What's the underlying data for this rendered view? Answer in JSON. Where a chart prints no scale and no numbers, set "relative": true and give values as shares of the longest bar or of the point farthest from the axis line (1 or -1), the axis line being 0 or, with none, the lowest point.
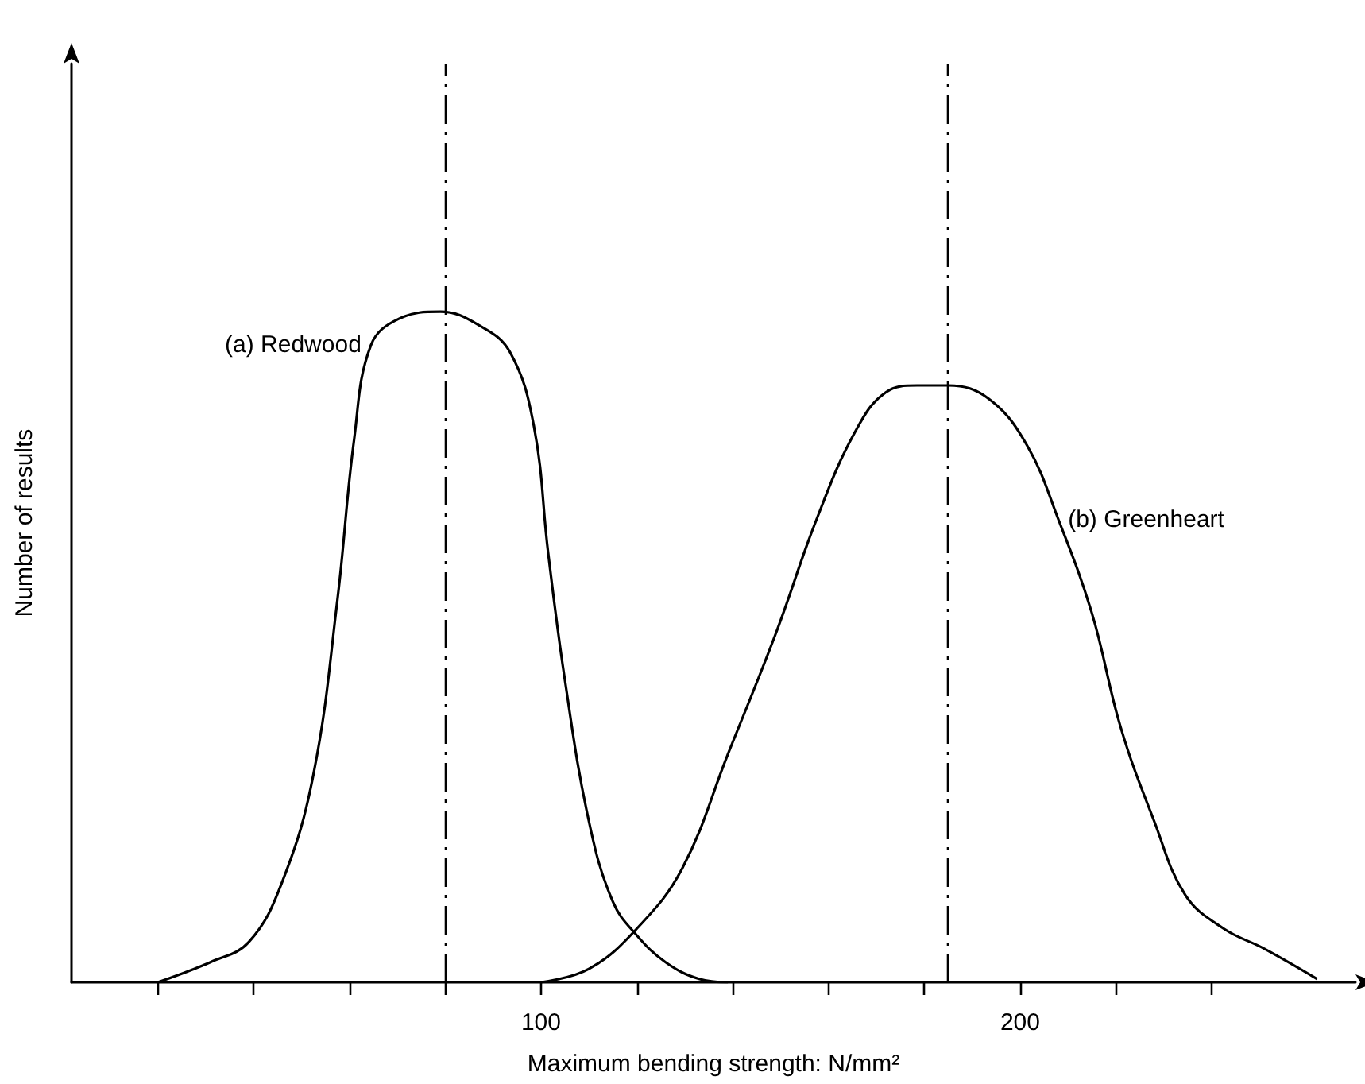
{
  "chart_data": {
    "type": "line",
    "relative": true,
    "xlabel": "Maximum bending strength: N/mm²",
    "ylabel": "Number of results",
    "xlim": [
      2,
      270
    ],
    "xticks": [
      {
        "value": 20,
        "label": null
      },
      {
        "value": 40,
        "label": null
      },
      {
        "value": 60,
        "label": null
      },
      {
        "value": 80,
        "label": null
      },
      100,
      {
        "value": 120,
        "label": null
      },
      {
        "value": 140,
        "label": null
      },
      {
        "value": 160,
        "label": null
      },
      {
        "value": 180,
        "label": null
      },
      200,
      {
        "value": 220,
        "label": null
      },
      {
        "value": 240,
        "label": null
      }
    ],
    "tick_labels": "x",
    "grid": false,
    "legend": false,
    "marker": "none",
    "line_style": "solid",
    "series": [
      {
        "name": "(a) Redwood",
        "color": "#000000",
        "x": [
          20,
          31,
          39,
          46,
          52.5,
          57.5,
          61,
          64.5,
          70.5,
          79,
          87,
          93.5,
          98.5,
          101.5,
          105,
          110,
          115,
          120,
          126,
          133,
          139
        ],
        "values": [
          0,
          0.03,
          0.06,
          0.15,
          0.31,
          0.57,
          0.81,
          0.95,
          0.99,
          1,
          0.98,
          0.94,
          0.83,
          0.64,
          0.45,
          0.24,
          0.12,
          0.07,
          0.03,
          0.005,
          0
        ]
      },
      {
        "name": "(b) Greenheart",
        "color": "#000000",
        "x": [
          100,
          110,
          120,
          129.5,
          139,
          149,
          157.5,
          165.5,
          172,
          178.5,
          185,
          193.5,
          201.5,
          208,
          215,
          221,
          228,
          234.5,
          242.5,
          251,
          262
        ],
        "values": [
          0,
          0.02,
          0.08,
          0.17,
          0.34,
          0.52,
          0.69,
          0.82,
          0.88,
          0.89,
          0.89,
          0.87,
          0.8,
          0.69,
          0.55,
          0.38,
          0.24,
          0.13,
          0.08,
          0.05,
          0.005
        ]
      }
    ],
    "ref_lines": [
      {
        "axis": "x",
        "value": 80,
        "color": "#000000",
        "line_style": "dashdot"
      },
      {
        "axis": "x",
        "value": 185,
        "color": "#000000",
        "line_style": "dashdot"
      }
    ]
  }
}
